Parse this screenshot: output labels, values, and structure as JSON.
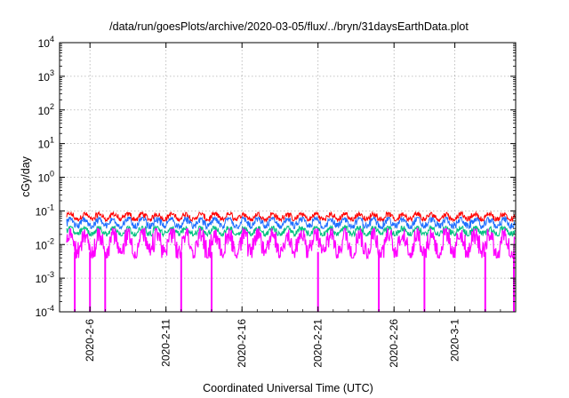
{
  "chart_data": {
    "type": "line",
    "title": "/data/run/goesPlots/archive/2020-03-05/flux/../bryn/31daysEarthData.plot",
    "xlabel": "Coordinated Universal Time (UTC)",
    "ylabel": "cGy/day",
    "y_scale": "log",
    "ylim": [
      0.0001,
      10000
    ],
    "xlim": [
      "2020-02-04",
      "2020-03-05"
    ],
    "grid": true,
    "legend": "none",
    "y_ticks": [
      {
        "base": "10",
        "exp": "-4",
        "value": 0.0001
      },
      {
        "base": "10",
        "exp": "-3",
        "value": 0.001
      },
      {
        "base": "10",
        "exp": "-2",
        "value": 0.01
      },
      {
        "base": "10",
        "exp": "-1",
        "value": 0.1
      },
      {
        "base": "10",
        "exp": "0",
        "value": 1
      },
      {
        "base": "10",
        "exp": "1",
        "value": 10
      },
      {
        "base": "10",
        "exp": "2",
        "value": 100
      },
      {
        "base": "10",
        "exp": "3",
        "value": 1000
      },
      {
        "base": "10",
        "exp": "4",
        "value": 10000
      }
    ],
    "x_ticks": [
      {
        "label": "2020-2-6",
        "date": "2020-02-06"
      },
      {
        "label": "2020-2-11",
        "date": "2020-02-11"
      },
      {
        "label": "2020-2-16",
        "date": "2020-02-16"
      },
      {
        "label": "2020-2-21",
        "date": "2020-02-21"
      },
      {
        "label": "2020-2-26",
        "date": "2020-02-26"
      },
      {
        "label": "2020-3-1",
        "date": "2020-03-01"
      }
    ],
    "series": [
      {
        "color": "#ff0000",
        "values_range": [
          0.05,
          0.09
        ],
        "typical": 0.065
      },
      {
        "color": "#1e6fff",
        "values_range": [
          0.03,
          0.065
        ],
        "typical": 0.045
      },
      {
        "color": "#00c080",
        "values_range": [
          0.018,
          0.035
        ],
        "typical": 0.025
      },
      {
        "color": "#ff00ff",
        "values_range": [
          0.004,
          0.03
        ],
        "typical": 0.012,
        "dropouts": [
          "2020-02-05",
          "2020-02-06",
          "2020-02-07",
          "2020-02-12",
          "2020-02-14",
          "2020-02-21",
          "2020-02-25",
          "2020-02-28",
          "2020-03-03",
          "2020-03-05"
        ]
      }
    ]
  }
}
